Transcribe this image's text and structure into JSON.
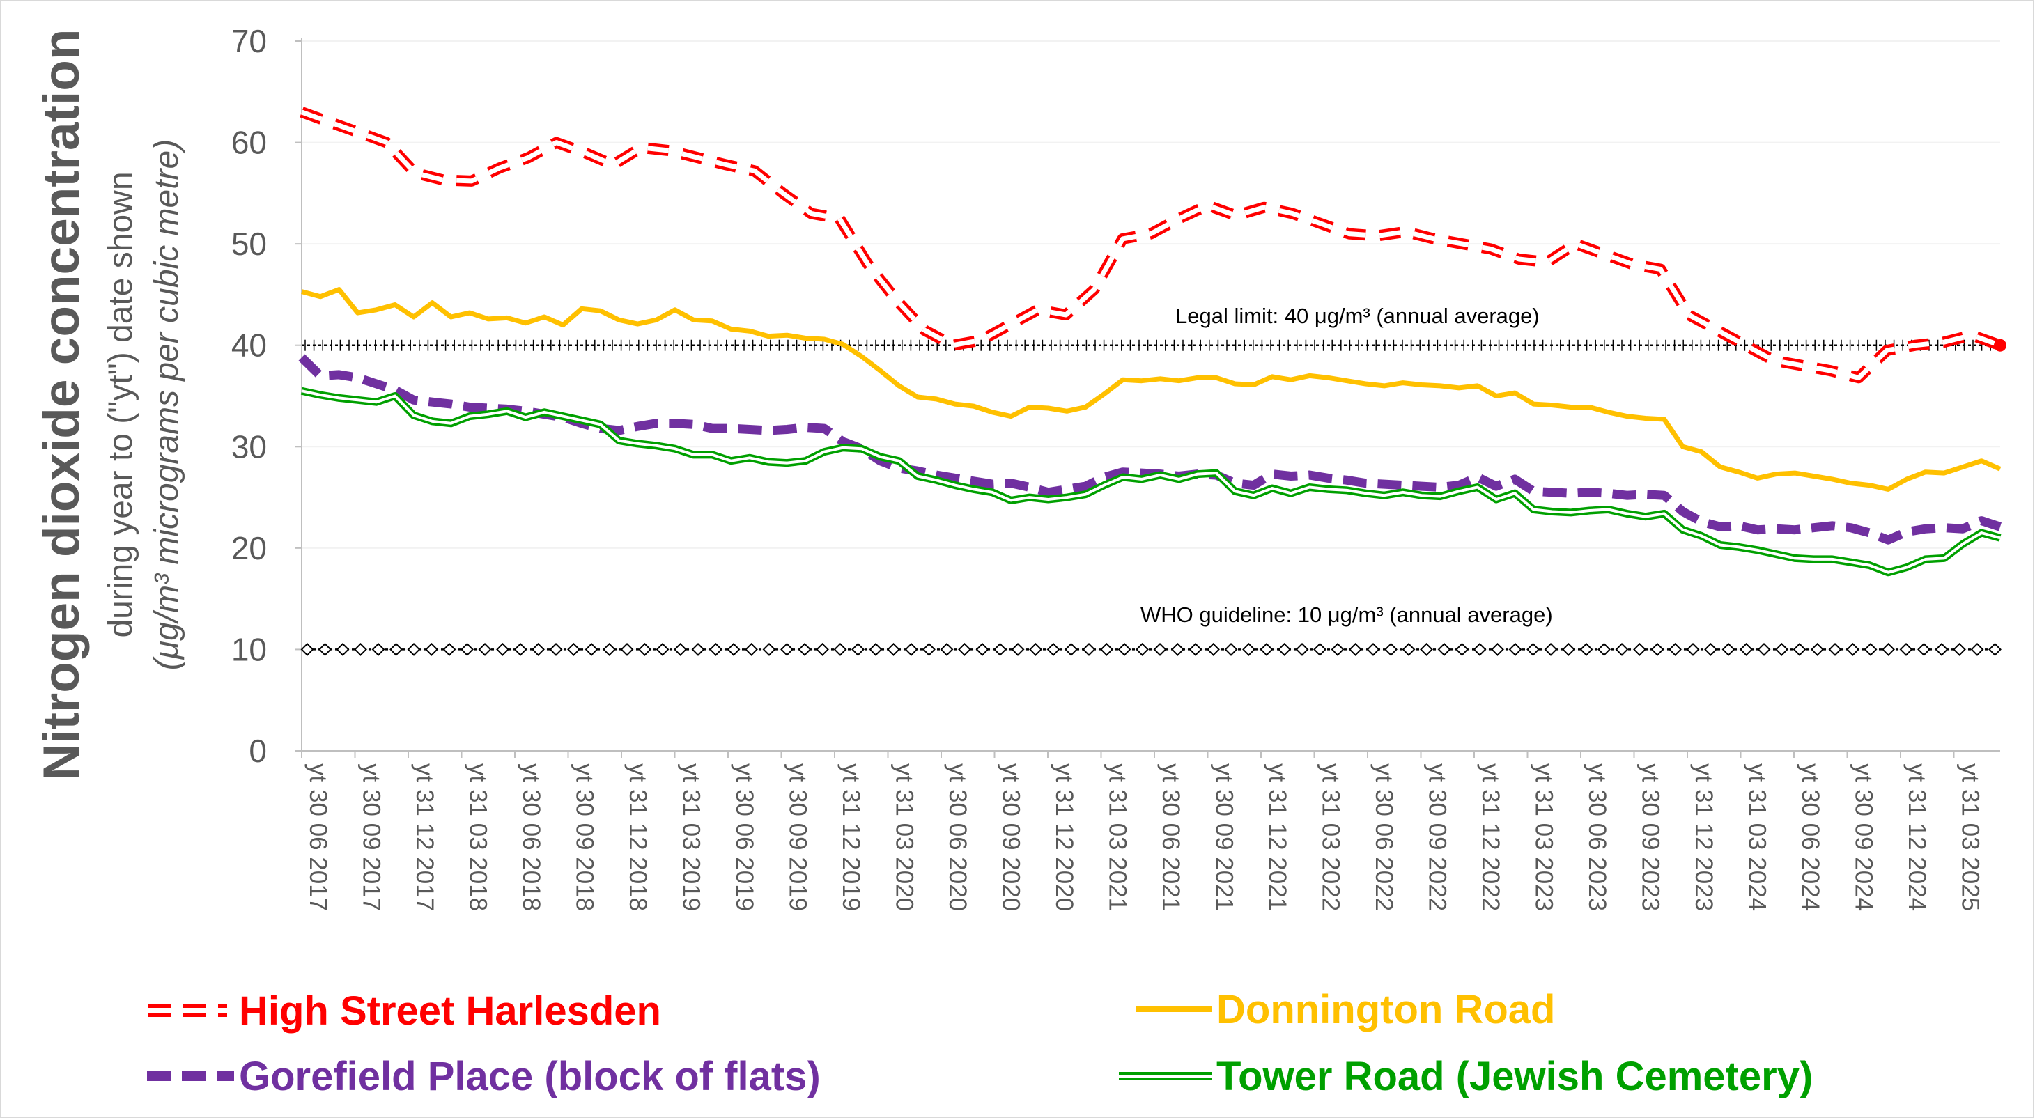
{
  "colors": {
    "harlesden": "#ff0000",
    "donnington": "#ffc000",
    "gorefield": "#7030a0",
    "tower": "#00a000",
    "axis_text": "#595959",
    "reference": "#000000"
  },
  "chart_data": {
    "type": "line",
    "ylabel_main": "Nitrogen dioxide concentration",
    "ylabel_sub": "during year to (\"yt\") date shown",
    "ylabel_unit": "(μg/m³ micrograms per cubic metre)",
    "ylim": [
      0,
      70
    ],
    "yticks": [
      "0",
      "10",
      "20",
      "30",
      "40",
      "50",
      "60",
      "70"
    ],
    "xtick_labels": [
      "yt 30 06 2017",
      "yt 30 09 2017",
      "yt 31 12 2017",
      "yt 31 03 2018",
      "yt 30 06 2018",
      "yt 30 09 2018",
      "yt 31 12 2018",
      "yt 31 03 2019",
      "yt 30 06 2019",
      "yt 30 09 2019",
      "yt 31 12 2019",
      "yt 31 03 2020",
      "yt 30 06 2020",
      "yt 30 09 2020",
      "yt 31 12 2020",
      "yt 31 03 2021",
      "yt 30 06 2021",
      "yt 30 09 2021",
      "yt 31 12 2021",
      "yt 31 03 2022",
      "yt 30 06 2022",
      "yt 30 09 2022",
      "yt 31 12 2022",
      "yt 31 03 2023",
      "yt 30 06 2023",
      "yt 30 09 2023",
      "yt 31 12 2023",
      "yt 31 03 2024",
      "yt 30 06 2024",
      "yt 30 09 2024",
      "yt 31 12 2024",
      "yt 31 03 2025"
    ],
    "reference_lines": [
      {
        "value": 40,
        "label": "Legal limit: 40 μg/m³ (annual average)",
        "marker": "plus"
      },
      {
        "value": 10,
        "label": "WHO guideline: 10 μg/m³ (annual average)",
        "marker": "diamond"
      }
    ],
    "series": [
      {
        "name": "High Street Harlesden",
        "style": "dashed-hollow",
        "values": [
          63.0,
          62.0,
          61.0,
          60.0,
          57.0,
          56.3,
          56.2,
          57.5,
          58.5,
          60.0,
          59.0,
          57.8,
          59.5,
          59.2,
          58.5,
          57.8,
          57.2,
          55.0,
          53.0,
          52.5,
          48.0,
          44.5,
          41.5,
          40.0,
          40.5,
          42.0,
          43.5,
          43.0,
          45.5,
          50.5,
          51.0,
          52.5,
          53.8,
          52.8,
          53.6,
          53.0,
          52.0,
          51.0,
          50.8,
          51.2,
          50.5,
          50.0,
          49.5,
          48.5,
          48.2,
          50.0,
          49.0,
          48.0,
          47.5,
          43.0,
          41.5,
          40.0,
          38.5,
          38.0,
          37.5,
          36.8,
          39.5,
          40.0,
          40.3,
          41.0,
          40.0
        ]
      },
      {
        "name": "Donnington Road",
        "style": "solid",
        "values": [
          45.3,
          44.8,
          45.5,
          43.2,
          43.5,
          44.0,
          42.8,
          44.2,
          42.8,
          43.2,
          42.6,
          42.7,
          42.2,
          42.8,
          42.0,
          43.6,
          43.4,
          42.5,
          42.1,
          42.5,
          43.5,
          42.5,
          42.4,
          41.6,
          41.4,
          40.9,
          41.0,
          40.7,
          40.6,
          40.1,
          38.9,
          37.5,
          36.0,
          34.9,
          34.7,
          34.2,
          34.0,
          33.4,
          33.0,
          33.9,
          33.8,
          33.5,
          33.9,
          35.2,
          36.6,
          36.5,
          36.7,
          36.5,
          36.8,
          36.8,
          36.2,
          36.1,
          36.9,
          36.6,
          37.0,
          36.8,
          36.5,
          36.2,
          36.0,
          36.3,
          36.1,
          36.0,
          35.8,
          36.0,
          35.0,
          35.3,
          34.2,
          34.1,
          33.9,
          33.9,
          33.4,
          33.0,
          32.8,
          32.7,
          30.0,
          29.5,
          28.0,
          27.5,
          26.9,
          27.3,
          27.4,
          27.1,
          26.8,
          26.4,
          26.2,
          25.8,
          26.8,
          27.5,
          27.4,
          28.0,
          28.6,
          27.8
        ]
      },
      {
        "name": "Gorefield Place (block of flats)",
        "style": "dashed",
        "values": [
          38.8,
          37.0,
          37.1,
          36.8,
          36.2,
          35.6,
          34.6,
          34.4,
          34.2,
          33.9,
          33.8,
          33.7,
          33.5,
          33.2,
          32.9,
          32.3,
          31.8,
          31.6,
          32.0,
          32.3,
          32.3,
          32.2,
          31.8,
          31.8,
          31.7,
          31.6,
          31.7,
          31.9,
          31.8,
          30.5,
          29.8,
          28.6,
          27.9,
          27.6,
          27.2,
          26.9,
          26.6,
          26.3,
          26.4,
          26.0,
          25.5,
          25.8,
          26.1,
          27.0,
          27.5,
          27.4,
          27.3,
          27.1,
          27.3,
          27.2,
          26.4,
          26.2,
          27.3,
          27.1,
          27.2,
          26.9,
          26.7,
          26.4,
          26.3,
          26.2,
          26.1,
          26.0,
          26.2,
          27.0,
          26.1,
          26.8,
          25.6,
          25.5,
          25.4,
          25.5,
          25.4,
          25.2,
          25.3,
          25.2,
          23.6,
          22.6,
          22.1,
          22.2,
          21.8,
          21.9,
          21.8,
          22.0,
          22.2,
          22.0,
          21.5,
          20.8,
          21.6,
          21.9,
          22.0,
          21.9,
          22.7,
          22.1
        ]
      },
      {
        "name": "Tower Road (Jewish Cemetery)",
        "style": "double",
        "values": [
          35.5,
          35.1,
          34.8,
          34.6,
          34.4,
          35.0,
          33.1,
          32.5,
          32.3,
          33.0,
          33.2,
          33.5,
          32.9,
          33.4,
          33.0,
          32.6,
          32.2,
          30.6,
          30.3,
          30.1,
          29.8,
          29.2,
          29.2,
          28.6,
          28.9,
          28.5,
          28.4,
          28.6,
          29.5,
          29.9,
          29.8,
          29.0,
          28.6,
          27.1,
          26.7,
          26.2,
          25.8,
          25.5,
          24.7,
          25.0,
          24.8,
          25.0,
          25.3,
          26.2,
          27.0,
          26.8,
          27.2,
          26.8,
          27.3,
          27.4,
          25.6,
          25.2,
          25.9,
          25.4,
          26.0,
          25.8,
          25.7,
          25.4,
          25.2,
          25.5,
          25.2,
          25.1,
          25.6,
          26.0,
          24.8,
          25.4,
          23.8,
          23.6,
          23.5,
          23.7,
          23.8,
          23.4,
          23.1,
          23.4,
          21.8,
          21.2,
          20.3,
          20.1,
          19.8,
          19.4,
          19.0,
          18.9,
          18.9,
          18.6,
          18.3,
          17.6,
          18.1,
          18.9,
          19.0,
          20.4,
          21.5,
          21.0
        ]
      }
    ]
  }
}
